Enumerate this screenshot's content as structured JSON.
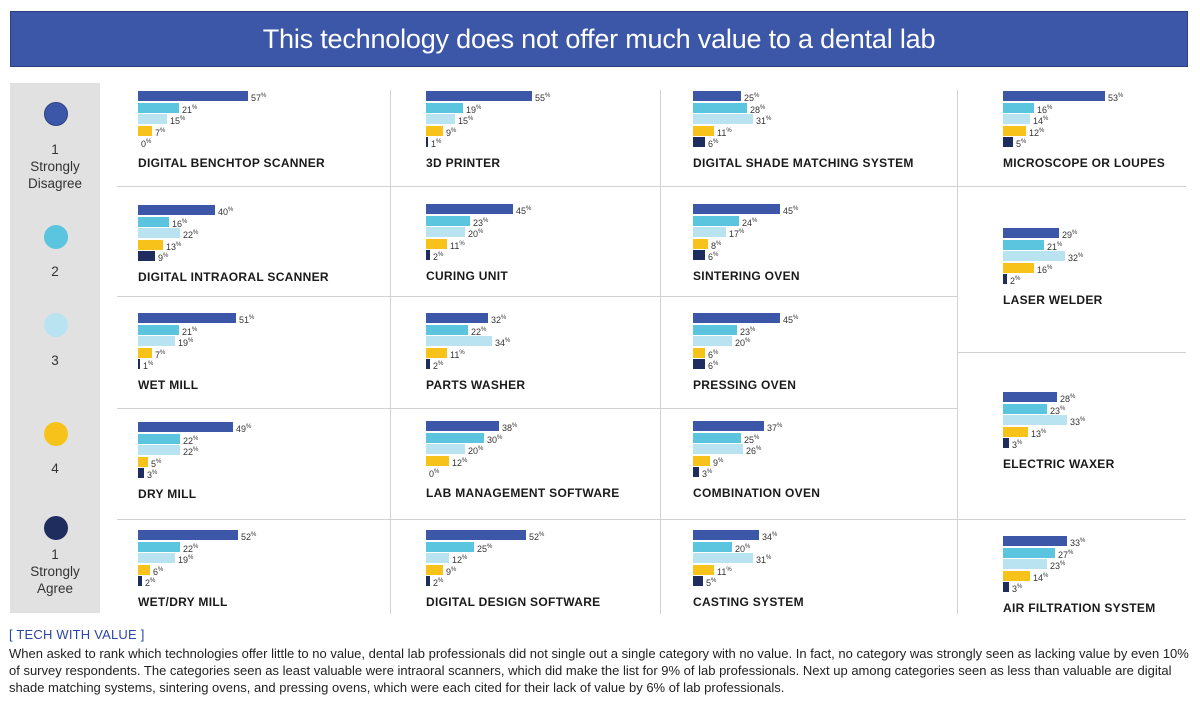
{
  "title": "This technology does not offer much value to a dental lab",
  "colors": {
    "title_bg": "#3d57a8",
    "s1": "#3d57a8",
    "s2": "#5bc4de",
    "s3": "#b9e3f0",
    "s4": "#f7c21a",
    "s5": "#1f2d5e"
  },
  "legend": [
    {
      "name": "1 Strongly Disagree",
      "lines": [
        "1",
        "Strongly",
        "Disagree"
      ]
    },
    {
      "name": "2",
      "lines": [
        "2"
      ]
    },
    {
      "name": "3",
      "lines": [
        "3"
      ]
    },
    {
      "name": "4",
      "lines": [
        "4"
      ]
    },
    {
      "name": "1 Strongly Agree",
      "lines": [
        "1",
        "Strongly",
        "Agree"
      ]
    }
  ],
  "chart_data": {
    "type": "bar",
    "orientation": "horizontal",
    "title": "This technology does not offer much value to a dental lab",
    "unit": "%",
    "series": [
      "1 Strongly Disagree",
      "2",
      "3",
      "4",
      "1 Strongly Agree"
    ],
    "panels": [
      {
        "label": "DIGITAL BENCHTOP SCANNER",
        "values": [
          57,
          21,
          15,
          7,
          0
        ]
      },
      {
        "label": "3D PRINTER",
        "values": [
          55,
          19,
          15,
          9,
          1
        ]
      },
      {
        "label": "DIGITAL SHADE MATCHING SYSTEM",
        "values": [
          25,
          28,
          31,
          11,
          6
        ]
      },
      {
        "label": "MICROSCOPE OR LOUPES",
        "values": [
          53,
          16,
          14,
          12,
          5
        ]
      },
      {
        "label": "DIGITAL INTRAORAL SCANNER",
        "values": [
          40,
          16,
          22,
          13,
          9
        ]
      },
      {
        "label": "CURING UNIT",
        "values": [
          45,
          23,
          20,
          11,
          2
        ]
      },
      {
        "label": "SINTERING OVEN",
        "values": [
          45,
          24,
          17,
          8,
          6
        ]
      },
      {
        "label": "LASER WELDER",
        "values": [
          29,
          21,
          32,
          16,
          2
        ]
      },
      {
        "label": "WET MILL",
        "values": [
          51,
          21,
          19,
          7,
          1
        ]
      },
      {
        "label": "PARTS WASHER",
        "values": [
          32,
          22,
          34,
          11,
          2
        ]
      },
      {
        "label": "PRESSING OVEN",
        "values": [
          45,
          23,
          20,
          6,
          6
        ]
      },
      {
        "label": "ELECTRIC WAXER",
        "values": [
          28,
          23,
          33,
          13,
          3
        ]
      },
      {
        "label": "DRY MILL",
        "values": [
          49,
          22,
          22,
          5,
          3
        ]
      },
      {
        "label": "LAB MANAGEMENT SOFTWARE",
        "values": [
          38,
          30,
          20,
          12,
          0
        ]
      },
      {
        "label": "COMBINATION OVEN",
        "values": [
          37,
          25,
          26,
          9,
          3
        ]
      },
      {
        "label": "AIR FILTRATION SYSTEM",
        "values": [
          33,
          27,
          23,
          14,
          3
        ]
      },
      {
        "label": "WET/DRY MILL",
        "values": [
          52,
          22,
          19,
          6,
          2
        ]
      },
      {
        "label": "DIGITAL DESIGN SOFTWARE",
        "values": [
          52,
          25,
          12,
          9,
          2
        ]
      },
      {
        "label": "CASTING SYSTEM",
        "values": [
          34,
          20,
          31,
          11,
          5
        ]
      }
    ]
  },
  "note": {
    "heading": "[ TECH WITH VALUE ]",
    "body": "When asked to rank which technologies offer little to no value, dental lab professionals did not single out a single category with no value. In fact, no category was strongly seen as lacking value by even 10% of survey respondents. The categories seen as least valuable were intraoral scanners, which did make the list for 9% of lab professionals. Next up among categories seen as less than valuable are digital shade matching systems, sintering ovens, and pressing ovens, which were each cited for their lack of value by 6% of lab professionals."
  }
}
